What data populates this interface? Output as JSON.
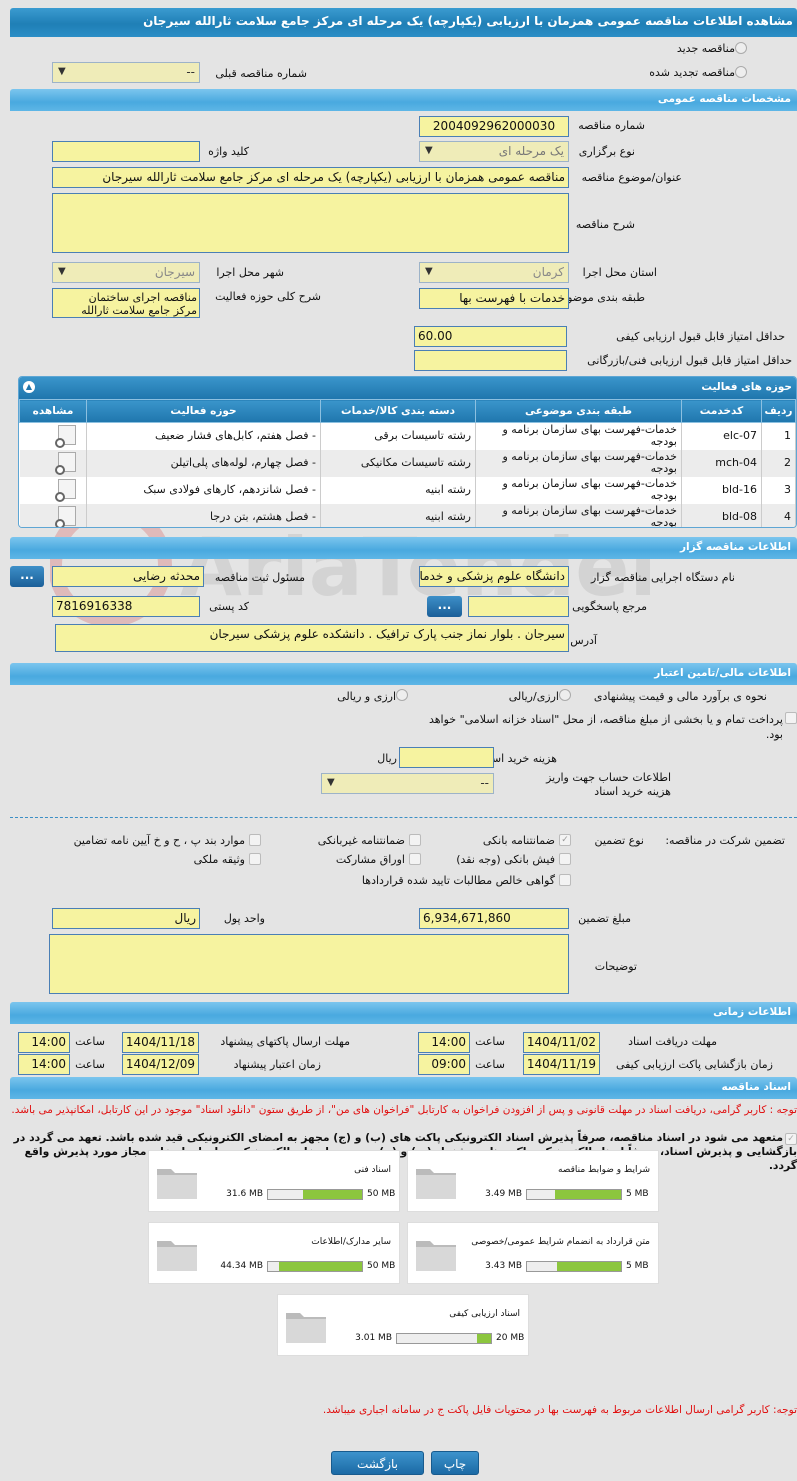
{
  "title": "مشاهده اطلاعات مناقصه عمومی همزمان با ارزیابی (یکپارچه) یک مرحله ای مرکز جامع سلامت ثارالله سیرجان",
  "top": {
    "new_label": "مناقصه جدید",
    "renewed_label": "مناقصه تجدید شده",
    "prev_number_label": "شماره مناقصه قبلی",
    "prev_number_value": "--"
  },
  "general": {
    "header": "مشخصات مناقصه عمومی",
    "number_label": "شماره مناقصه",
    "number": "2004092962000030",
    "type_label": "نوع برگزاری",
    "type": "یک مرحله ای",
    "keyword_label": "کلید واژه",
    "keyword": "",
    "subject_label": "عنوان/موضوع مناقصه",
    "subject": "مناقصه عمومی همزمان با ارزیابی (یکپارچه) یک مرحله ای مرکز جامع سلامت ثارالله سیرجان",
    "desc_label": "شرح مناقصه",
    "desc": "",
    "province_label": "استان محل اجرا",
    "province": "کرمان",
    "city_label": "شهر محل اجرا",
    "city": "سیرجان",
    "category_label": "طبقه بندی موضوعی",
    "category": "خدمات با فهرست بها",
    "activity_desc_label": "شرح کلی حوزه فعالیت",
    "activity_desc": "مناقصه اجرای ساختمان مرکز جامع سلامت ثارالله",
    "min_quality_label": "حداقل امتیاز قابل قبول ارزیابی کیفی",
    "min_quality": "60.00",
    "min_tech_label": "حداقل امتیاز قابل قبول ارزیابی فنی/بازرگانی",
    "min_tech": ""
  },
  "activities": {
    "header": "حوزه های فعالیت",
    "columns": [
      "ردیف",
      "کدخدمت",
      "طبقه بندی موضوعی",
      "دسته بندی کالا/خدمات",
      "حوزه فعالیت",
      "مشاهده"
    ],
    "rows": [
      {
        "n": "1",
        "code": "elc-07",
        "cat": "خدمات-فهرست بهای سازمان برنامه و بودجه",
        "group": "رشته تاسیسات برقی",
        "area": "- فصل هفتم، کابل‌های فشار ضعیف"
      },
      {
        "n": "2",
        "code": "mch-04",
        "cat": "خدمات-فهرست بهای سازمان برنامه و بودجه",
        "group": "رشته تاسیسات مکانیکی",
        "area": "- فصل چهارم، لوله‌های پلی‌اتیلن"
      },
      {
        "n": "3",
        "code": "bld-16",
        "cat": "خدمات-فهرست بهای سازمان برنامه و بودجه",
        "group": "رشته ابنیه",
        "area": "- فصل شانزدهم، کارهای فولادی سبک"
      },
      {
        "n": "4",
        "code": "bld-08",
        "cat": "خدمات-فهرست بهای سازمان برنامه و بودجه",
        "group": "رشته ابنیه",
        "area": "- فصل هشتم، بتن درجا"
      }
    ]
  },
  "organizer": {
    "header": "اطلاعات مناقصه گزار",
    "org_label": "نام دستگاه اجرایی مناقصه گزار",
    "org": "دانشگاه علوم پزشکی و خدمات",
    "resp_label": "مسئول ثبت مناقصه",
    "resp": "محدثه رضایی",
    "ref_label": "مرجع پاسخگویی",
    "ref": "",
    "postal_label": "کد پستی",
    "postal": "7816916338",
    "address_label": "آدرس",
    "address": "سیرجان . بلوار نماز جنب پارک ترافیک . دانشکده علوم پزشکی سیرجان",
    "more": "..."
  },
  "finance": {
    "header": "اطلاعات مالی/تامین اعتبار",
    "method_label": "نحوه ی برآورد مالی و قیمت پیشنهادی",
    "opt1": "ارزی/ریالی",
    "opt2": "ارزی و ریالی",
    "treasury_text": "پرداخت تمام و یا بخشی از مبلغ مناقصه، از محل \"اسناد خزانه اسلامی\" خواهد بود.",
    "doc_cost_label": "هزینه خرید اسناد",
    "doc_cost": "",
    "rial": "ریال",
    "account_label": "اطلاعات حساب جهت واریز هزینه خرید اسناد",
    "account": "--",
    "guarantee_label": "تضمین شرکت در مناقصه:",
    "guarantee_type_label": "نوع تضمین",
    "guarantees": [
      {
        "label": "ضمانتنامه بانکی",
        "checked": true
      },
      {
        "label": "ضمانتنامه غیربانکی",
        "checked": false
      },
      {
        "label": "موارد بند پ ، ح و خ آیین نامه تضامین",
        "checked": false
      },
      {
        "label": "فیش بانکی (وجه نقد)",
        "checked": false
      },
      {
        "label": "اوراق مشارکت",
        "checked": false
      },
      {
        "label": "وثیقه ملکی",
        "checked": false
      },
      {
        "label": "گواهی خالص مطالبات تایید شده قراردادها",
        "checked": false
      }
    ],
    "amount_label": "مبلغ تضمین",
    "amount": "6,934,671,860",
    "currency_label": "واحد پول",
    "currency": "ریال",
    "notes_label": "توضیحات",
    "notes": ""
  },
  "timing": {
    "header": "اطلاعات زمانی",
    "receive_label": "مهلت دریافت اسناد",
    "receive_date": "1404/11/02",
    "receive_time": "14:00",
    "send_label": "مهلت ارسال پاکتهای پیشنهاد",
    "send_date": "1404/11/18",
    "send_time": "14:00",
    "open_label": "زمان بازگشایی پاکت ارزیابی کیفی",
    "open_date": "1404/11/19",
    "open_time": "09:00",
    "valid_label": "زمان اعتبار پیشنهاد",
    "valid_date": "1404/12/09",
    "valid_time": "14:00",
    "time_label": "ساعت"
  },
  "documents": {
    "header": "اسناد مناقصه",
    "note": "توجه : کاربر گرامی، دریافت اسناد در مهلت قانونی و پس از افزودن فراخوان به کارتابل \"فراخوان های من\"، از طریق ستون \"دانلود اسناد\" موجود در این کارتابل، امکانپذیر می باشد.",
    "commit": "متعهد می شود در اسناد مناقصه، صرفاً پذیرش اسناد الکترونیکی پاکت های (ب) و (ج) مجهز به امضای الکترونیکی قید شده باشد. تعهد می گردد در بازگشایی و پذیرش اسناد، صرفاً اسناد الکترونیکی پاکت های پیشنهاد (ب) و (ج) مجهز به امضای الکترونیکی صاحبان امضای مجاز مورد پذیرش واقع گردد.",
    "files": [
      {
        "title": "شرایط و ضوابط مناقصه",
        "size": "3.49 MB",
        "max": "5 MB",
        "pct": 69.8
      },
      {
        "title": "اسناد فنی",
        "size": "31.6 MB",
        "max": "50 MB",
        "pct": 63.2
      },
      {
        "title": "متن قرارداد به انضمام شرایط عمومی/خصوصی",
        "size": "3.43 MB",
        "max": "5 MB",
        "pct": 68.6
      },
      {
        "title": "سایر مدارک/اطلاعات",
        "size": "44.34 MB",
        "max": "50 MB",
        "pct": 88.7
      },
      {
        "title": "اسناد ارزیابی کیفی",
        "size": "3.01 MB",
        "max": "20 MB",
        "pct": 15
      }
    ],
    "bottom_note": "توجه: کاربر گرامی ارسال اطلاعات مربوط به فهرست بها در محتویات فایل پاکت ج در سامانه اجباری میباشد."
  },
  "buttons": {
    "print": "چاپ",
    "back": "بازگشت"
  },
  "watermark": "AriaTender.net"
}
